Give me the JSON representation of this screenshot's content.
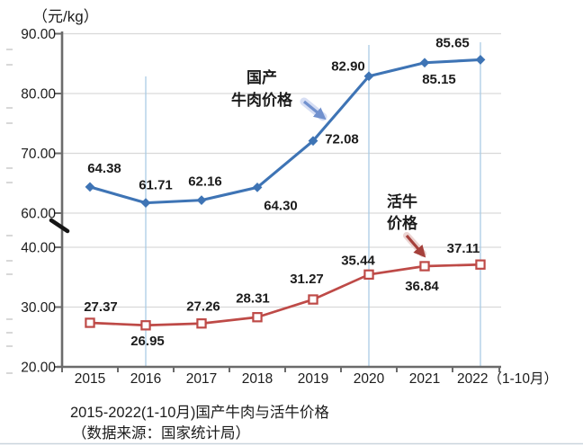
{
  "chart_data": {
    "type": "line",
    "unit": "（元/kg）",
    "title": "2015-2022(1-10月)国产牛肉与活牛价格",
    "source": "（数据来源：国家统计局）",
    "categories": [
      "2015",
      "2016",
      "2017",
      "2018",
      "2019",
      "2020",
      "2021",
      "2022（1-10月）"
    ],
    "y_axis": {
      "upper_ticks": [
        {
          "label": "90.00",
          "value": 90
        },
        {
          "label": "80.00",
          "value": 80
        },
        {
          "label": "70.00",
          "value": 70
        },
        {
          "label": "60.00",
          "value": 60
        }
      ],
      "lower_ticks": [
        {
          "label": "40.00",
          "value": 40
        },
        {
          "label": "30.00",
          "value": 30
        },
        {
          "label": "20.00",
          "value": 20
        }
      ],
      "axis_break_between": [
        40,
        60
      ]
    },
    "series": [
      {
        "name": "国产牛肉价格",
        "marker": "diamond",
        "color": "#3E74B5",
        "label_color": "#1c1c1c",
        "values": [
          64.38,
          61.71,
          62.16,
          64.3,
          72.08,
          82.9,
          85.15,
          85.65
        ]
      },
      {
        "name": "活牛价格",
        "marker": "open-square",
        "color": "#BE4A47",
        "label_color": "#C2352E",
        "values": [
          27.37,
          26.95,
          27.26,
          28.31,
          31.27,
          35.44,
          36.84,
          37.11
        ]
      }
    ],
    "reference_line_years": [
      "2016",
      "2020",
      "2022"
    ],
    "grid": "horizontal",
    "legend": "inline-callouts",
    "xlabel": "",
    "ylabel": "元/kg"
  },
  "annotations": {
    "beef": [
      "国产",
      "牛肉价格"
    ],
    "cattle": [
      "活牛",
      "价格"
    ],
    "beef_color": "#2E86C5",
    "cattle_color": "#B53330"
  },
  "colors": {
    "gridline": "#D9D9D9",
    "reference_line": "#AACBE5",
    "axis": "#6B6B6B",
    "text": "#1C1C1C",
    "beef_arrow": "#7191CE",
    "cattle_arrow": "#A5403B"
  }
}
